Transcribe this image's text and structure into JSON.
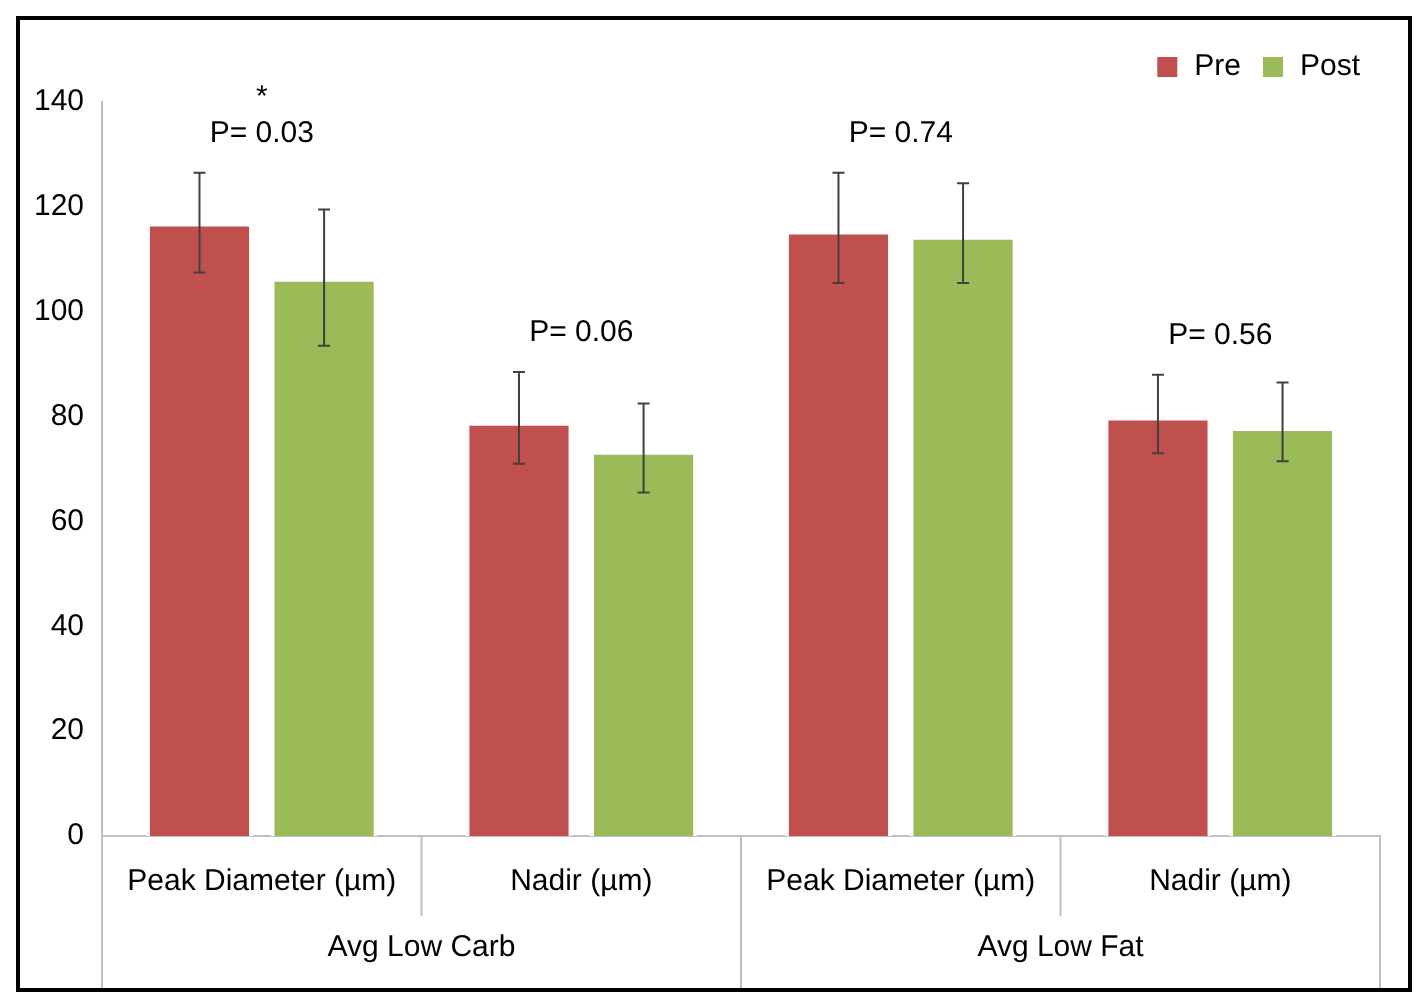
{
  "chart_data": {
    "type": "bar",
    "categories": [
      "Peak Diameter (µm)",
      "Nadir (µm)",
      "Peak Diameter (µm)",
      "Nadir (µm)"
    ],
    "series": [
      {
        "name": "Pre",
        "color": "#c0504d",
        "values": [
          117,
          79,
          115.5,
          80
        ],
        "errors": [
          [
            107.5,
            126.5
          ],
          [
            71,
            88.5
          ],
          [
            105.5,
            126.5
          ],
          [
            73,
            88
          ]
        ]
      },
      {
        "name": "Post",
        "color": "#9bbb59",
        "values": [
          106.5,
          73.5,
          114.5,
          78
        ],
        "errors": [
          [
            93.5,
            119.5
          ],
          [
            65.5,
            82.5
          ],
          [
            105.5,
            124.5
          ],
          [
            71.5,
            86.5
          ]
        ]
      }
    ],
    "ylim": [
      0,
      140
    ],
    "yticks": [
      0,
      20,
      40,
      60,
      80,
      100,
      120,
      140
    ],
    "grid": false,
    "legend": "top right",
    "annotations": [
      "*",
      "P= 0.03",
      "P= 0.06",
      "P= 0.74",
      "P= 0.56",
      "Avg Low Carb",
      "Avg Low Fat"
    ]
  }
}
